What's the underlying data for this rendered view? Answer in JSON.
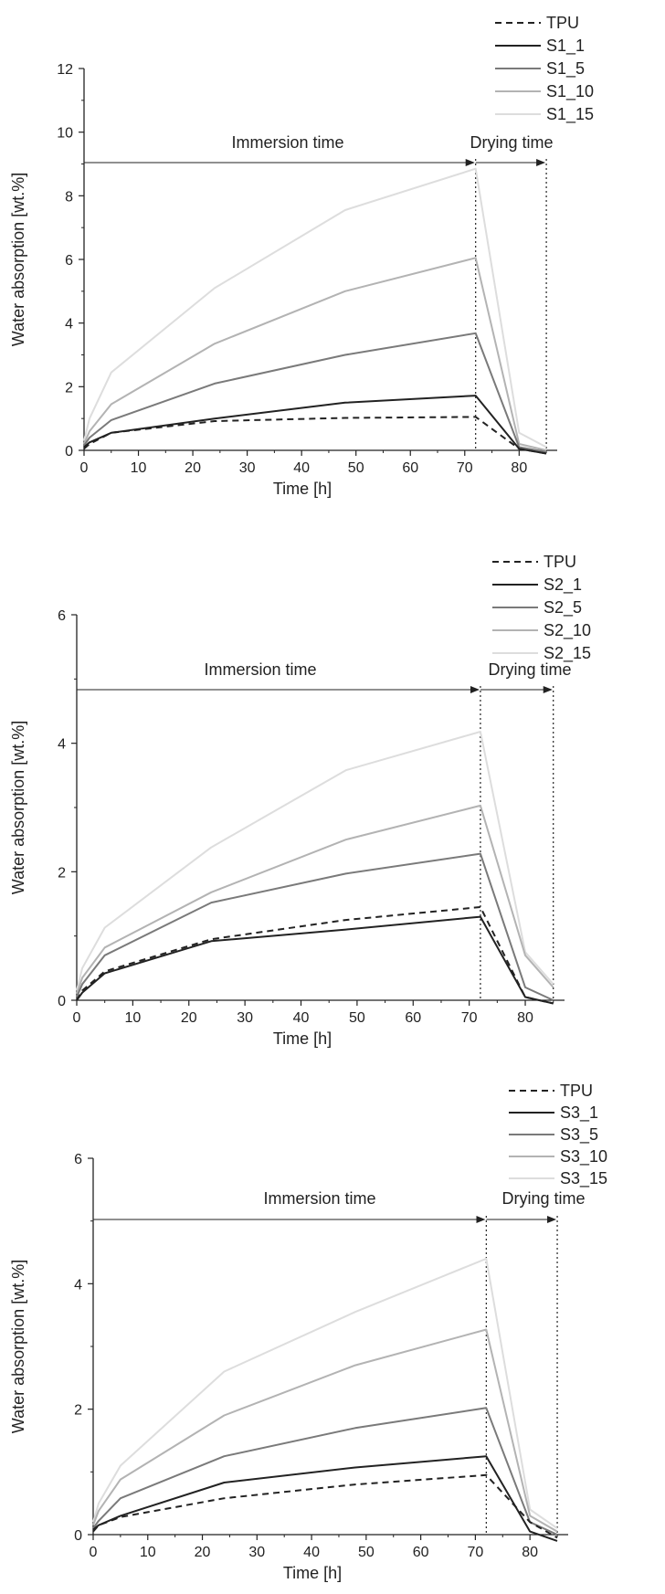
{
  "chart_data": [
    {
      "type": "line",
      "xlabel": "Time [h]",
      "ylabel": "Water absorption [wt.%]",
      "xlim": [
        0,
        87
      ],
      "ylim": [
        0,
        12
      ],
      "xticks": [
        0,
        10,
        20,
        30,
        40,
        50,
        60,
        70,
        80
      ],
      "yticks": [
        0,
        2,
        4,
        6,
        8,
        10,
        12
      ],
      "annotations": {
        "immersion": "Immersion time",
        "drying": "Drying time",
        "boundaries": [
          72,
          85
        ]
      },
      "legend_position": "top-right",
      "x": [
        0,
        1,
        5,
        24,
        48,
        72,
        80,
        85
      ],
      "series": [
        {
          "name": "TPU",
          "color": "#222222",
          "dash": true,
          "values": [
            0.05,
            0.2,
            0.55,
            0.92,
            1.02,
            1.05,
            0.05,
            -0.1
          ]
        },
        {
          "name": "S1_1",
          "color": "#222222",
          "values": [
            0.1,
            0.25,
            0.55,
            1.0,
            1.5,
            1.72,
            0.05,
            -0.1
          ]
        },
        {
          "name": "S1_5",
          "color": "#7a7a7a",
          "values": [
            0.15,
            0.4,
            0.95,
            2.1,
            3.0,
            3.68,
            0.1,
            -0.05
          ]
        },
        {
          "name": "S1_10",
          "color": "#b3b3b3",
          "values": [
            0.2,
            0.6,
            1.45,
            3.35,
            5.0,
            6.05,
            0.2,
            0.0
          ]
        },
        {
          "name": "S1_15",
          "color": "#dddddd",
          "values": [
            0.3,
            1.0,
            2.45,
            5.1,
            7.55,
            8.85,
            0.55,
            0.1
          ]
        }
      ]
    },
    {
      "type": "line",
      "xlabel": "Time [h]",
      "ylabel": "Water absorption [wt.%]",
      "xlim": [
        0,
        87
      ],
      "ylim": [
        0,
        6
      ],
      "xticks": [
        0,
        10,
        20,
        30,
        40,
        50,
        60,
        70,
        80
      ],
      "yticks": [
        0,
        2,
        4,
        6
      ],
      "annotations": {
        "immersion": "Immersion time",
        "drying": "Drying time",
        "boundaries": [
          72,
          85
        ]
      },
      "legend_position": "top-right",
      "x": [
        0,
        1,
        5,
        24,
        48,
        72,
        80,
        85
      ],
      "series": [
        {
          "name": "TPU",
          "color": "#222222",
          "dash": true,
          "values": [
            0.0,
            0.15,
            0.45,
            0.95,
            1.25,
            1.45,
            0.05,
            -0.05
          ]
        },
        {
          "name": "S2_1",
          "color": "#222222",
          "values": [
            0.0,
            0.12,
            0.42,
            0.92,
            1.1,
            1.3,
            0.05,
            -0.05
          ]
        },
        {
          "name": "S2_5",
          "color": "#7a7a7a",
          "values": [
            0.05,
            0.25,
            0.7,
            1.52,
            1.97,
            2.28,
            0.2,
            0.0
          ]
        },
        {
          "name": "S2_10",
          "color": "#b3b3b3",
          "values": [
            0.1,
            0.35,
            0.82,
            1.68,
            2.5,
            3.03,
            0.7,
            0.2
          ]
        },
        {
          "name": "S2_15",
          "color": "#dddddd",
          "values": [
            0.15,
            0.5,
            1.13,
            2.38,
            3.58,
            4.18,
            0.75,
            0.25
          ]
        }
      ]
    },
    {
      "type": "line",
      "xlabel": "Time [h]",
      "ylabel": "Water absorption [wt.%]",
      "xlim": [
        0,
        87
      ],
      "ylim": [
        0,
        6
      ],
      "xticks": [
        0,
        10,
        20,
        30,
        40,
        50,
        60,
        70,
        80
      ],
      "yticks": [
        0,
        2,
        4,
        6
      ],
      "annotations": {
        "immersion": "Immersion time",
        "drying": "Drying time",
        "boundaries": [
          72,
          85
        ]
      },
      "legend_position": "top-right",
      "x": [
        0,
        1,
        5,
        24,
        48,
        72,
        80,
        85
      ],
      "series": [
        {
          "name": "TPU",
          "color": "#222222",
          "dash": true,
          "values": [
            0.05,
            0.15,
            0.28,
            0.58,
            0.8,
            0.95,
            0.2,
            -0.05
          ]
        },
        {
          "name": "S3_1",
          "color": "#222222",
          "values": [
            0.08,
            0.15,
            0.3,
            0.83,
            1.07,
            1.25,
            0.05,
            -0.1
          ]
        },
        {
          "name": "S3_5",
          "color": "#7a7a7a",
          "values": [
            0.1,
            0.22,
            0.58,
            1.25,
            1.7,
            2.02,
            0.2,
            0.0
          ]
        },
        {
          "name": "S3_10",
          "color": "#b3b3b3",
          "values": [
            0.15,
            0.38,
            0.88,
            1.9,
            2.7,
            3.27,
            0.3,
            0.05
          ]
        },
        {
          "name": "S3_15",
          "color": "#dddddd",
          "values": [
            0.2,
            0.5,
            1.1,
            2.6,
            3.55,
            4.4,
            0.4,
            0.1
          ]
        }
      ]
    }
  ]
}
